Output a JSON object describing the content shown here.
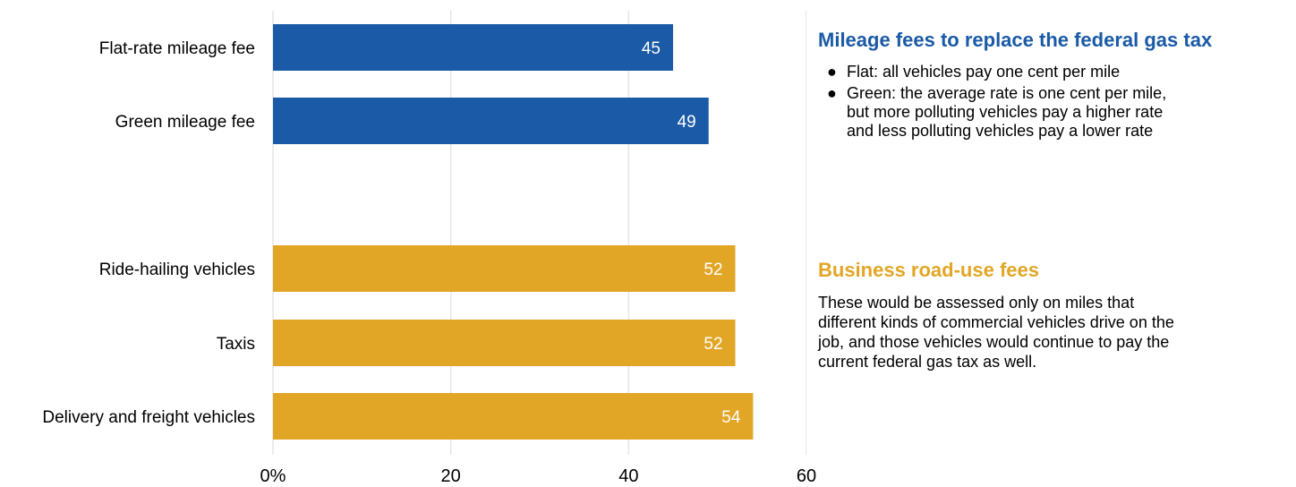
{
  "chart_data": {
    "type": "bar",
    "orientation": "horizontal",
    "categories": [
      "Flat-rate mileage fee",
      "Green mileage fee",
      "Ride-hailing vehicles",
      "Taxis",
      "Delivery and freight vehicles"
    ],
    "values": [
      45,
      49,
      52,
      52,
      54
    ],
    "value_labels": [
      "45",
      "49",
      "52",
      "52",
      "54"
    ],
    "groups": [
      {
        "categories": [
          "Flat-rate mileage fee",
          "Green mileage fee"
        ],
        "color": "#1a5aa6"
      },
      {
        "categories": [
          "Ride-hailing vehicles",
          "Taxis",
          "Delivery and freight vehicles"
        ],
        "color": "#e2a626"
      }
    ],
    "x_ticks": [
      "0%",
      "20",
      "40",
      "60"
    ],
    "xlim": [
      0,
      60
    ],
    "grid": true,
    "title": "",
    "xlabel": "",
    "ylabel": ""
  },
  "panels": {
    "mileage": {
      "heading": "Mileage fees to replace the federal gas tax",
      "color": "#1a5aa6",
      "bullets": [
        "Flat: all vehicles pay one cent per mile",
        "Green: the average rate is one cent per mile,\nbut more polluting vehicles pay a higher rate\nand less polluting vehicles pay a lower rate"
      ],
      "bullet_symbol": "●"
    },
    "business": {
      "heading": "Business road-use fees",
      "color": "#e2a626",
      "text": "These would be assessed only on miles that different kinds of commercial vehicles drive on the job, and those vehicles would continue to pay the current federal gas tax as well."
    }
  }
}
